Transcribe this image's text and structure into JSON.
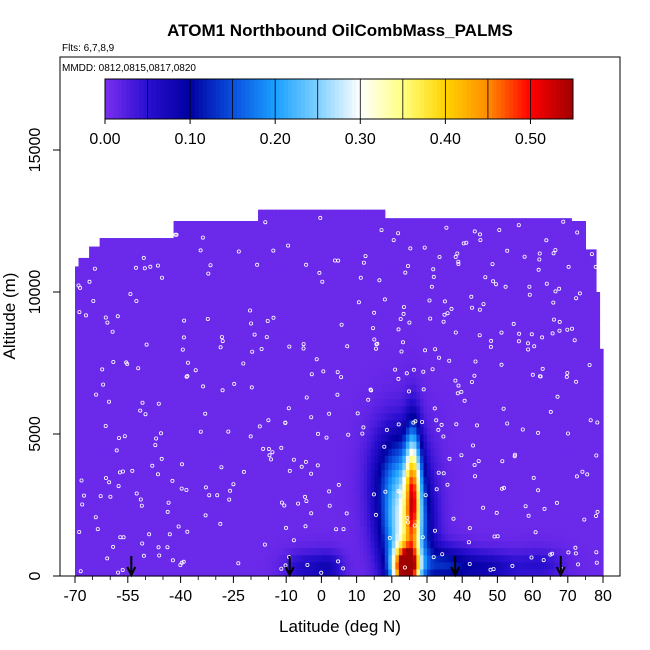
{
  "chart_data": {
    "type": "heatmap",
    "title": "ATOM1 Northbound OilCombMass_PALMS",
    "annotations": [
      "Flts: 6,7,8,9",
      "MMDD: 0812,0815,0817,0820"
    ],
    "xlabel": "Latitude (deg N)",
    "ylabel": "Altitude (m)",
    "xlim": [
      -70,
      80
    ],
    "ylim": [
      0,
      17500
    ],
    "x_ticks": [
      -70,
      -55,
      -40,
      -25,
      -10,
      0,
      10,
      20,
      30,
      40,
      50,
      60,
      70,
      80
    ],
    "y_ticks": [
      0,
      5000,
      10000,
      15000
    ],
    "colorbar": {
      "min": 0.0,
      "max": 0.55,
      "ticks": [
        0.0,
        0.1,
        0.2,
        0.3,
        0.4,
        0.5
      ],
      "tick_labels": [
        "0.00",
        "0.10",
        "0.20",
        "0.30",
        "0.40",
        "0.50"
      ],
      "colors": [
        "#7b2ff0",
        "#2a0fd0",
        "#0000a0",
        "#0a4fe0",
        "#1aa0ff",
        "#7fd0ff",
        "#ffffff",
        "#ffff80",
        "#ffd400",
        "#ff8c00",
        "#ff0000",
        "#a00000"
      ]
    },
    "background_value": 0.01,
    "coverage_top": [
      {
        "lat": -70,
        "alt": 10900
      },
      {
        "lat": -69,
        "alt": 11200
      },
      {
        "lat": -66,
        "alt": 11600
      },
      {
        "lat": -63,
        "alt": 11900
      },
      {
        "lat": -42,
        "alt": 12500
      },
      {
        "lat": -18,
        "alt": 12900
      },
      {
        "lat": 12,
        "alt": 12900
      },
      {
        "lat": 18,
        "alt": 12600
      },
      {
        "lat": 71,
        "alt": 12500
      },
      {
        "lat": 75,
        "alt": 11500
      },
      {
        "lat": 78,
        "alt": 10000
      },
      {
        "lat": 79,
        "alt": 8000
      },
      {
        "lat": 80,
        "alt": 6000
      }
    ],
    "hotspots": [
      {
        "lat": 24,
        "alt": 300,
        "value": 0.5,
        "sx": 2.5,
        "sy": 500
      },
      {
        "lat": 26,
        "alt": 3000,
        "value": 0.3,
        "sx": 1.5,
        "sy": 1500
      },
      {
        "lat": 24,
        "alt": 1500,
        "value": 0.24,
        "sx": 4.5,
        "sy": 1300
      },
      {
        "lat": 22,
        "alt": 3500,
        "value": 0.14,
        "sx": 5.0,
        "sy": 1300
      },
      {
        "lat": 35,
        "alt": 400,
        "value": 0.1,
        "sx": 5.0,
        "sy": 450
      },
      {
        "lat": 47,
        "alt": 300,
        "value": 0.07,
        "sx": 6.0,
        "sy": 400
      },
      {
        "lat": -5,
        "alt": 300,
        "value": 0.05,
        "sx": 4.0,
        "sy": 400
      },
      {
        "lat": 2,
        "alt": 300,
        "value": 0.06,
        "sx": 3.0,
        "sy": 400
      },
      {
        "lat": 62,
        "alt": 400,
        "value": 0.04,
        "sx": 5.0,
        "sy": 400
      }
    ],
    "arrows_lat": [
      -54,
      -9,
      38,
      68
    ],
    "flight_dot_count": 420
  }
}
